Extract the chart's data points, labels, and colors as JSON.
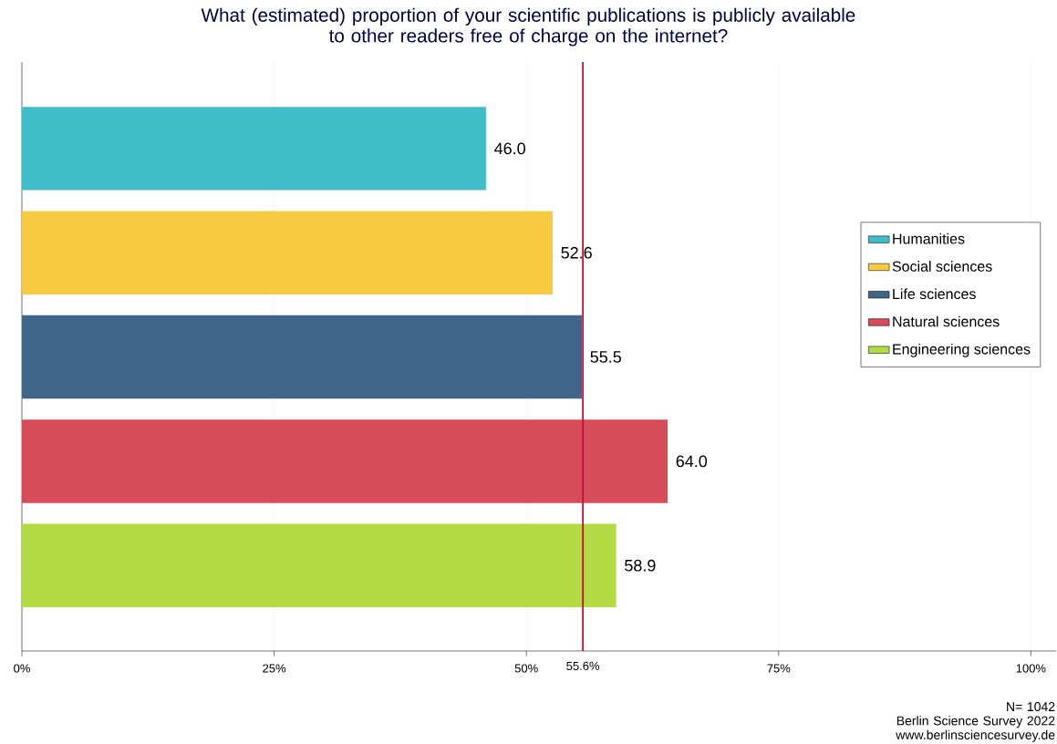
{
  "chart_data": {
    "type": "bar",
    "orientation": "horizontal",
    "title": "What (estimated) proportion of your scientific publications is publicly available\nto other readers free of charge on the internet?",
    "categories": [
      null
    ],
    "series": [
      {
        "name": "Humanities",
        "color": "#41bcc9",
        "values": [
          46.0
        ],
        "value_labels": [
          "46.0"
        ]
      },
      {
        "name": "Social sciences",
        "color": "#f6cb41",
        "values": [
          52.6
        ],
        "value_labels": [
          "52.6"
        ]
      },
      {
        "name": "Life sciences",
        "color": "#3f6689",
        "values": [
          55.5
        ],
        "value_labels": [
          "55.5"
        ]
      },
      {
        "name": "Natural sciences",
        "color": "#d64c59",
        "values": [
          64.0
        ],
        "value_labels": [
          "64.0"
        ]
      },
      {
        "name": "Engineering sciences",
        "color": "#b3db43",
        "values": [
          58.9
        ],
        "value_labels": [
          "58.9"
        ]
      }
    ],
    "xlim": [
      0,
      102.5
    ],
    "xticks": [
      {
        "value": 0,
        "label": "0%"
      },
      {
        "value": 25,
        "label": "25%"
      },
      {
        "value": 50,
        "label": "50%"
      },
      {
        "value": 75,
        "label": "75%"
      },
      {
        "value": 100,
        "label": "100%"
      }
    ],
    "ref_lines": [
      {
        "axis": "x",
        "value": 55.6,
        "label": "55.6%",
        "color": "#c8103f"
      }
    ],
    "grid": "x",
    "legend": "right",
    "annotations": [
      "N= 1042",
      "Berlin Science Survey 2022",
      "www.berlinsciencesurvey.de"
    ]
  }
}
